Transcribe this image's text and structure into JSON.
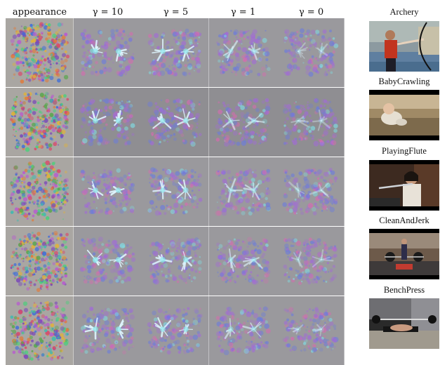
{
  "figure": {
    "column_headers": [
      {
        "text": "appearance",
        "math": false
      },
      {
        "text": "γ = 10",
        "math": true
      },
      {
        "text": "γ = 5",
        "math": true
      },
      {
        "text": "γ = 1",
        "math": true
      },
      {
        "text": "γ = 0",
        "math": true
      }
    ],
    "rows": [
      {
        "class_label": "Archery"
      },
      {
        "class_label": "BabyCrawling"
      },
      {
        "class_label": "PlayingFlute"
      },
      {
        "class_label": "CleanAndJerk"
      },
      {
        "class_label": "BenchPress"
      }
    ]
  }
}
